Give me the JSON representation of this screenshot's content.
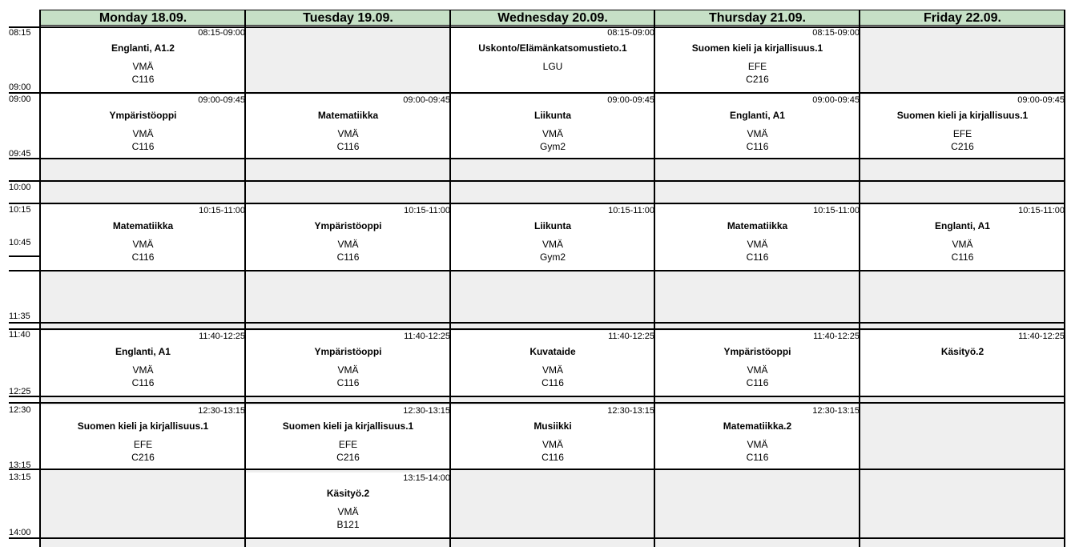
{
  "days": [
    "Monday 18.09.",
    "Tuesday 19.09.",
    "Wednesday 20.09.",
    "Thursday 21.09.",
    "Friday 22.09."
  ],
  "time_labels": [
    "08:15",
    "09:00",
    "09:00",
    "09:45",
    "10:00",
    "10:15",
    "10:45",
    "11:35",
    "11:40",
    "12:25",
    "12:30",
    "13:15",
    "13:15",
    "14:00"
  ],
  "lessons": [
    {
      "day": 0,
      "slot": 0,
      "time": "08:15-09:00",
      "subject": "Englanti, A1.2",
      "teacher": "VMÄ",
      "room": "C116"
    },
    {
      "day": 2,
      "slot": 0,
      "time": "08:15-09:00",
      "subject": "Uskonto/Elämänkatsomustieto.1",
      "teacher": "LGU",
      "room": ""
    },
    {
      "day": 3,
      "slot": 0,
      "time": "08:15-09:00",
      "subject": "Suomen kieli ja kirjallisuus.1",
      "teacher": "EFE",
      "room": "C216"
    },
    {
      "day": 0,
      "slot": 1,
      "time": "09:00-09:45",
      "subject": "Ympäristöoppi",
      "teacher": "VMÄ",
      "room": "C116"
    },
    {
      "day": 1,
      "slot": 1,
      "time": "09:00-09:45",
      "subject": "Matematiikka",
      "teacher": "VMÄ",
      "room": "C116"
    },
    {
      "day": 2,
      "slot": 1,
      "time": "09:00-09:45",
      "subject": "Liikunta",
      "teacher": "VMÄ",
      "room": "Gym2"
    },
    {
      "day": 3,
      "slot": 1,
      "time": "09:00-09:45",
      "subject": "Englanti, A1",
      "teacher": "VMÄ",
      "room": "C116"
    },
    {
      "day": 4,
      "slot": 1,
      "time": "09:00-09:45",
      "subject": "Suomen kieli ja kirjallisuus.1",
      "teacher": "EFE",
      "room": "C216"
    },
    {
      "day": 0,
      "slot": 2,
      "time": "10:15-11:00",
      "subject": "Matematiikka",
      "teacher": "VMÄ",
      "room": "C116"
    },
    {
      "day": 1,
      "slot": 2,
      "time": "10:15-11:00",
      "subject": "Ympäristöoppi",
      "teacher": "VMÄ",
      "room": "C116"
    },
    {
      "day": 2,
      "slot": 2,
      "time": "10:15-11:00",
      "subject": "Liikunta",
      "teacher": "VMÄ",
      "room": "Gym2"
    },
    {
      "day": 3,
      "slot": 2,
      "time": "10:15-11:00",
      "subject": "Matematiikka",
      "teacher": "VMÄ",
      "room": "C116"
    },
    {
      "day": 4,
      "slot": 2,
      "time": "10:15-11:00",
      "subject": "Englanti, A1",
      "teacher": "VMÄ",
      "room": "C116"
    },
    {
      "day": 0,
      "slot": 3,
      "time": "11:40-12:25",
      "subject": "Englanti, A1",
      "teacher": "VMÄ",
      "room": "C116"
    },
    {
      "day": 1,
      "slot": 3,
      "time": "11:40-12:25",
      "subject": "Ympäristöoppi",
      "teacher": "VMÄ",
      "room": "C116"
    },
    {
      "day": 2,
      "slot": 3,
      "time": "11:40-12:25",
      "subject": "Kuvataide",
      "teacher": "VMÄ",
      "room": "C116"
    },
    {
      "day": 3,
      "slot": 3,
      "time": "11:40-12:25",
      "subject": "Ympäristöoppi",
      "teacher": "VMÄ",
      "room": "C116"
    },
    {
      "day": 4,
      "slot": 3,
      "time": "11:40-12:25",
      "subject": "Käsityö.2",
      "teacher": "",
      "room": ""
    },
    {
      "day": 0,
      "slot": 4,
      "time": "12:30-13:15",
      "subject": "Suomen kieli ja kirjallisuus.1",
      "teacher": "EFE",
      "room": "C216"
    },
    {
      "day": 1,
      "slot": 4,
      "time": "12:30-13:15",
      "subject": "Suomen kieli ja kirjallisuus.1",
      "teacher": "EFE",
      "room": "C216"
    },
    {
      "day": 2,
      "slot": 4,
      "time": "12:30-13:15",
      "subject": "Musiikki",
      "teacher": "VMÄ",
      "room": "C116"
    },
    {
      "day": 3,
      "slot": 4,
      "time": "12:30-13:15",
      "subject": "Matematiikka.2",
      "teacher": "VMÄ",
      "room": "C116"
    },
    {
      "day": 1,
      "slot": 5,
      "time": "13:15-14:00",
      "subject": "Käsityö.2",
      "teacher": "VMÄ",
      "room": "B121"
    }
  ]
}
